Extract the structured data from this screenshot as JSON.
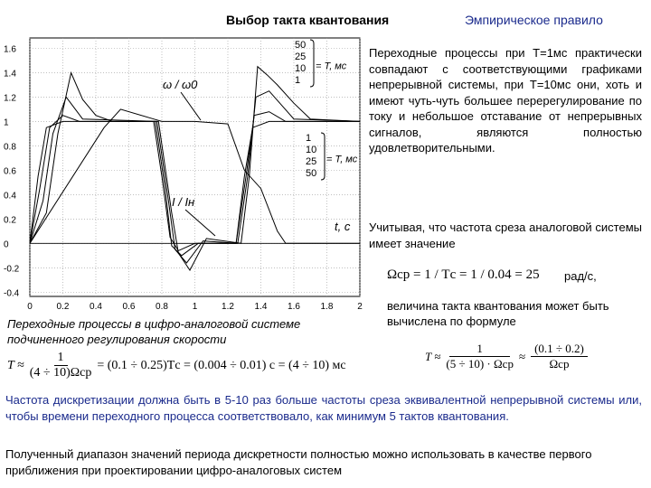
{
  "header": {
    "title": "Выбор такта квантования",
    "subtitle": "Эмпирическое правило"
  },
  "chart_data": {
    "type": "line",
    "xlabel": "t, c",
    "x_ticks": [
      "0",
      "0.2",
      "0.4",
      "0.6",
      "0.8",
      "1",
      "1.2",
      "1.4",
      "1.6",
      "1.8",
      "2"
    ],
    "y_ticks": [
      "1.6",
      "1.4",
      "1.2",
      "1",
      "0.8",
      "0.6",
      "0.4",
      "0.2",
      "0",
      "-0.2",
      "-0.4"
    ],
    "xlim": [
      0,
      2
    ],
    "ylim": [
      -0.45,
      1.7
    ],
    "grid": true,
    "legend_top_values": [
      "50",
      "25",
      "10",
      "1"
    ],
    "legend_top_label": "= T, мс",
    "legend_bottom_values": [
      "1",
      "10",
      "25",
      "50"
    ],
    "legend_bottom_label": "= T, мс",
    "annotation_speed": "ω / ω0",
    "annotation_current": "I / Iн",
    "series": [
      {
        "values": [
          [
            0,
            0
          ],
          [
            0.05,
            0.55
          ],
          [
            0.1,
            0.95
          ],
          [
            0.2,
            1.0
          ],
          [
            0.75,
            1.0
          ],
          [
            0.8,
            0.55
          ],
          [
            0.85,
            0.05
          ],
          [
            0.9,
            -0.06
          ],
          [
            1.0,
            0
          ],
          [
            1.25,
            0
          ],
          [
            1.3,
            0.55
          ],
          [
            1.35,
            0.95
          ],
          [
            1.45,
            1.0
          ],
          [
            2,
            1.0
          ]
        ]
      },
      {
        "values": [
          [
            0,
            0
          ],
          [
            0.06,
            0.45
          ],
          [
            0.12,
            0.95
          ],
          [
            0.2,
            1.05
          ],
          [
            0.3,
            1.0
          ],
          [
            0.76,
            1.0
          ],
          [
            0.82,
            0.45
          ],
          [
            0.86,
            -0.02
          ],
          [
            0.92,
            -0.1
          ],
          [
            1.02,
            0
          ],
          [
            1.25,
            0
          ],
          [
            1.31,
            0.55
          ],
          [
            1.36,
            1.05
          ],
          [
            1.45,
            1.08
          ],
          [
            1.55,
            1.0
          ],
          [
            2,
            1.0
          ]
        ]
      },
      {
        "values": [
          [
            0,
            0
          ],
          [
            0.08,
            0.35
          ],
          [
            0.14,
            0.9
          ],
          [
            0.22,
            1.2
          ],
          [
            0.32,
            1.02
          ],
          [
            0.77,
            1.0
          ],
          [
            0.84,
            0.35
          ],
          [
            0.88,
            -0.05
          ],
          [
            0.95,
            -0.16
          ],
          [
            1.05,
            0.02
          ],
          [
            1.26,
            0
          ],
          [
            1.32,
            0.55
          ],
          [
            1.37,
            1.2
          ],
          [
            1.45,
            1.25
          ],
          [
            1.6,
            1.02
          ],
          [
            2,
            1.0
          ]
        ]
      },
      {
        "values": [
          [
            0,
            0
          ],
          [
            0.1,
            0.25
          ],
          [
            0.17,
            0.9
          ],
          [
            0.25,
            1.4
          ],
          [
            0.32,
            1.18
          ],
          [
            0.4,
            1.05
          ],
          [
            0.5,
            1.0
          ],
          [
            0.78,
            1.0
          ],
          [
            0.86,
            0.25
          ],
          [
            0.9,
            -0.08
          ],
          [
            0.97,
            -0.22
          ],
          [
            1.07,
            0.04
          ],
          [
            1.28,
            0
          ],
          [
            1.33,
            0.55
          ],
          [
            1.38,
            1.45
          ],
          [
            1.44,
            1.38
          ],
          [
            1.5,
            1.3
          ],
          [
            1.6,
            1.15
          ],
          [
            1.7,
            1.02
          ],
          [
            2,
            1.0
          ]
        ]
      },
      {
        "values": [
          [
            0,
            0
          ],
          [
            0.45,
            0.95
          ],
          [
            0.55,
            1.1
          ],
          [
            0.75,
            1.02
          ],
          [
            0.8,
            1.0
          ],
          [
            1.0,
            1.0
          ],
          [
            1.2,
            0.98
          ],
          [
            1.3,
            0.6
          ],
          [
            1.4,
            0.45
          ],
          [
            1.5,
            0.1
          ],
          [
            1.55,
            0
          ],
          [
            2,
            0
          ]
        ]
      }
    ]
  },
  "caption": {
    "line1": "Переходные процессы в цифро-аналоговой системе",
    "line2": "подчиненного регулирования скорости"
  },
  "right_column": {
    "para1": "Переходные процессы при T=1мс практически совпадают с соответствующими графиками непрерывной системы, при T=10мс они, хоть и имеют чуть-чуть большее перерегулирование по току и небольшое отставание от непрерывных сигналов, являются полностью удовлетворительными.",
    "para2": "Учитывая, что частота среза аналоговой системы имеет значение",
    "formula1": "Ωср = 1 / Tс = 1 / 0.04 = 25",
    "formula1_unit": "рад/с,",
    "para3": "величина такта квантования может быть вычислена по формуле"
  },
  "formulas": {
    "left_T": "T ≈",
    "left_num": "1",
    "left_den": "(4 ÷ 10)Ωср",
    "left_rest": "= (0.1 ÷ 0.25)Tс = (0.004 ÷ 0.01) с = (4 ÷ 10) мс",
    "right_T": "T ≈",
    "right_num1": "1",
    "right_den1": "(5 ÷ 10) · Ωср",
    "right_eq": "≈",
    "right_num2": "(0.1 ÷ 0.2)",
    "right_den2": "Ωср"
  },
  "footer": {
    "para_blue": "Частота дискретизации должна быть в 5-10 раз больше частоты среза  эквивалентной непрерывной системы или, чтобы времени переходного процесса соответствовало, как минимум 5 тактов квантования.",
    "para_black": "Полученный диапазон значений периода дискретности полностью можно использовать в качестве первого приближения при проектировании цифро-аналоговых систем"
  }
}
